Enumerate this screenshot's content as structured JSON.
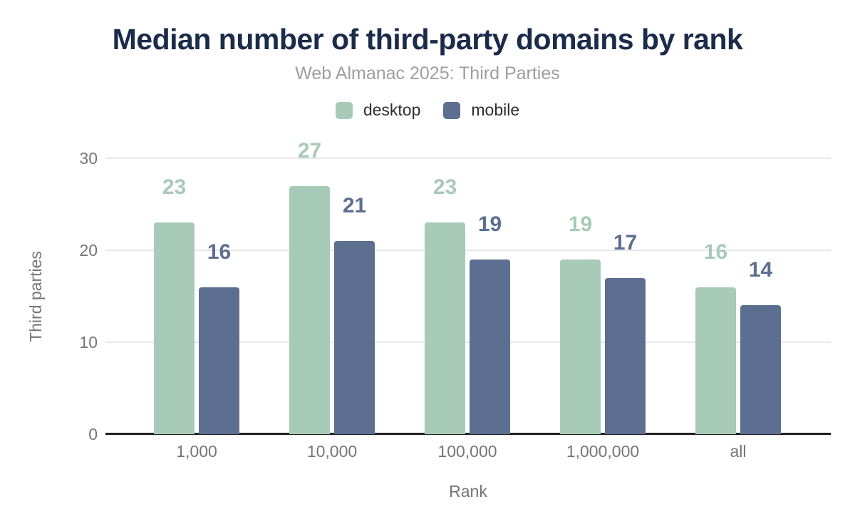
{
  "header": {
    "title": "Median number of third-party domains by rank",
    "subtitle": "Web Almanac 2025: Third Parties"
  },
  "legend": [
    {
      "label": "desktop",
      "color": "#a8cab8"
    },
    {
      "label": "mobile",
      "color": "#5d6f91"
    }
  ],
  "chart_data": {
    "type": "bar",
    "title": "Median number of third-party domains by rank",
    "subtitle": "Web Almanac 2025: Third Parties",
    "categories": [
      "1,000",
      "10,000",
      "100,000",
      "1,000,000",
      "all"
    ],
    "series": [
      {
        "name": "desktop",
        "color": "#a8cab8",
        "values": [
          23,
          27,
          23,
          19,
          16
        ]
      },
      {
        "name": "mobile",
        "color": "#5d6f91",
        "values": [
          16,
          21,
          19,
          17,
          14
        ]
      }
    ],
    "xlabel": "Rank",
    "ylabel": "Third parties",
    "ylim": [
      0,
      30
    ],
    "y_ticks": [
      0,
      10,
      20,
      30
    ],
    "grid": true,
    "legend_position": "top",
    "value_labels": true
  },
  "colors": {
    "title": "#1b2b4a",
    "subtitle": "#9e9e9e",
    "tick_labels": "#757575",
    "gridline": "#e7e7e7",
    "axis_line": "#212121",
    "background": "#ffffff"
  }
}
